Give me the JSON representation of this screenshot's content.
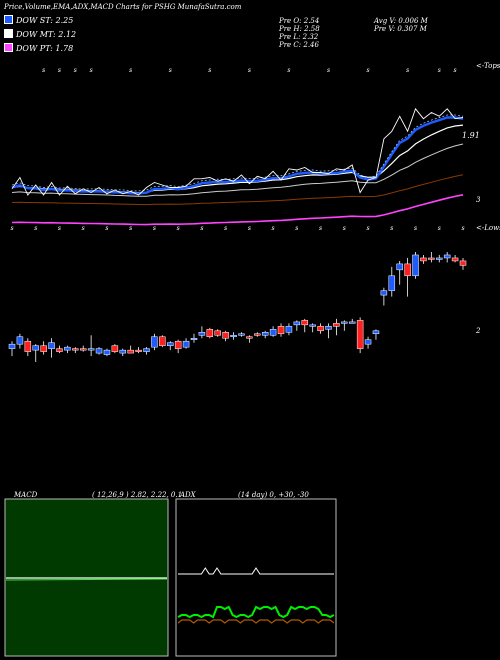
{
  "header": {
    "title": "Price,Volume,EMA,ADX,MACD Charts for PSHG MunafaSutra.com"
  },
  "legend": [
    {
      "label": "DOW ST: 2.25",
      "color": "#1e5cff"
    },
    {
      "label": "DOW MT: 2.12",
      "color": "#ffffff"
    },
    {
      "label": "DOW PT: 1.78",
      "color": "#ff44ff"
    }
  ],
  "prev": {
    "open": "Pre  O: 2.54",
    "high": "Pre  H: 2.58",
    "low": "Pre  L: 2.32",
    "close": "Pre  C: 2.46"
  },
  "volume": {
    "avg": "Avg V: 0.006  M",
    "prev": "Pre  V: 0.307 M"
  },
  "ema_panel": {
    "right_tag": "<-Tops",
    "last_price_label": "1.91",
    "axis_label": "3"
  },
  "candle_panel": {
    "right_tag": "<-Lows",
    "axis_label": "2"
  },
  "macd": {
    "label": "MACD",
    "params": "( 12,26,9 ) 2.82,  2.22,  0.1"
  },
  "adx": {
    "label": "ADX",
    "params": "(14  day) 0,  +30,  -30"
  },
  "colors": {
    "up": "#1e5cff",
    "down": "#ff2020",
    "macd_bg": "#003a00",
    "adx_plus": "#00ee00",
    "adx_minus": "#b05a00"
  },
  "chart_data": {
    "type": "line",
    "x": [
      1,
      2,
      3,
      4,
      5,
      6,
      7,
      8,
      9,
      10,
      11,
      12,
      13,
      14,
      15,
      16,
      17,
      18,
      19,
      20,
      21,
      22,
      23,
      24,
      25,
      26,
      27,
      28,
      29,
      30,
      31,
      32,
      33,
      34,
      35,
      36,
      37,
      38,
      39,
      40,
      41,
      42,
      43,
      44,
      45,
      46,
      47,
      48,
      49,
      50,
      51,
      52,
      53,
      54,
      55,
      56,
      57,
      58
    ],
    "candles": [
      {
        "o": 1.97,
        "h": 2.02,
        "l": 1.92,
        "c": 2.0
      },
      {
        "o": 2.0,
        "h": 2.07,
        "l": 1.97,
        "c": 2.05
      },
      {
        "o": 2.02,
        "h": 2.04,
        "l": 1.92,
        "c": 1.95
      },
      {
        "o": 1.96,
        "h": 2.0,
        "l": 1.88,
        "c": 1.99
      },
      {
        "o": 1.99,
        "h": 2.02,
        "l": 1.93,
        "c": 1.95
      },
      {
        "o": 1.97,
        "h": 2.04,
        "l": 1.91,
        "c": 2.01
      },
      {
        "o": 1.97,
        "h": 1.99,
        "l": 1.94,
        "c": 1.95
      },
      {
        "o": 1.96,
        "h": 1.99,
        "l": 1.94,
        "c": 1.98
      },
      {
        "o": 1.97,
        "h": 1.98,
        "l": 1.94,
        "c": 1.96
      },
      {
        "o": 1.97,
        "h": 1.99,
        "l": 1.95,
        "c": 1.96
      },
      {
        "o": 1.96,
        "h": 2.06,
        "l": 1.92,
        "c": 1.97
      },
      {
        "o": 1.94,
        "h": 1.98,
        "l": 1.93,
        "c": 1.97
      },
      {
        "o": 1.93,
        "h": 1.97,
        "l": 1.92,
        "c": 1.96
      },
      {
        "o": 1.99,
        "h": 2.0,
        "l": 1.94,
        "c": 1.95
      },
      {
        "o": 1.94,
        "h": 1.97,
        "l": 1.92,
        "c": 1.96
      },
      {
        "o": 1.96,
        "h": 1.99,
        "l": 1.94,
        "c": 1.94
      },
      {
        "o": 1.96,
        "h": 1.98,
        "l": 1.94,
        "c": 1.95
      },
      {
        "o": 1.95,
        "h": 1.98,
        "l": 1.93,
        "c": 1.97
      },
      {
        "o": 1.98,
        "h": 2.07,
        "l": 1.96,
        "c": 2.05
      },
      {
        "o": 2.05,
        "h": 2.06,
        "l": 1.98,
        "c": 1.99
      },
      {
        "o": 1.99,
        "h": 2.02,
        "l": 1.96,
        "c": 2.01
      },
      {
        "o": 2.02,
        "h": 2.03,
        "l": 1.94,
        "c": 1.97
      },
      {
        "o": 1.98,
        "h": 2.04,
        "l": 1.97,
        "c": 2.02
      },
      {
        "o": 2.03,
        "h": 2.07,
        "l": 2.01,
        "c": 2.04
      },
      {
        "o": 2.06,
        "h": 2.12,
        "l": 2.04,
        "c": 2.08
      },
      {
        "o": 2.1,
        "h": 2.11,
        "l": 2.04,
        "c": 2.05
      },
      {
        "o": 2.09,
        "h": 2.1,
        "l": 2.05,
        "c": 2.06
      },
      {
        "o": 2.08,
        "h": 2.09,
        "l": 2.02,
        "c": 2.04
      },
      {
        "o": 2.06,
        "h": 2.08,
        "l": 2.03,
        "c": 2.06
      },
      {
        "o": 2.06,
        "h": 2.08,
        "l": 2.05,
        "c": 2.07
      },
      {
        "o": 2.05,
        "h": 2.06,
        "l": 2.01,
        "c": 2.04
      },
      {
        "o": 2.07,
        "h": 2.08,
        "l": 2.05,
        "c": 2.06
      },
      {
        "o": 2.06,
        "h": 2.09,
        "l": 2.04,
        "c": 2.08
      },
      {
        "o": 2.06,
        "h": 2.12,
        "l": 2.05,
        "c": 2.1
      },
      {
        "o": 2.12,
        "h": 2.14,
        "l": 2.05,
        "c": 2.07
      },
      {
        "o": 2.08,
        "h": 2.14,
        "l": 2.06,
        "c": 2.12
      },
      {
        "o": 2.13,
        "h": 2.16,
        "l": 2.09,
        "c": 2.15
      },
      {
        "o": 2.16,
        "h": 2.17,
        "l": 2.08,
        "c": 2.13
      },
      {
        "o": 2.12,
        "h": 2.14,
        "l": 2.08,
        "c": 2.13
      },
      {
        "o": 2.12,
        "h": 2.14,
        "l": 2.07,
        "c": 2.09
      },
      {
        "o": 2.1,
        "h": 2.14,
        "l": 2.04,
        "c": 2.12
      },
      {
        "o": 2.14,
        "h": 2.17,
        "l": 2.06,
        "c": 2.12
      },
      {
        "o": 2.14,
        "h": 2.16,
        "l": 2.09,
        "c": 2.15
      },
      {
        "o": 2.15,
        "h": 2.17,
        "l": 2.14,
        "c": 2.15
      },
      {
        "o": 2.16,
        "h": 2.18,
        "l": 1.94,
        "c": 1.97
      },
      {
        "o": 2.0,
        "h": 2.05,
        "l": 1.97,
        "c": 2.03
      },
      {
        "o": 2.07,
        "h": 2.1,
        "l": 2.03,
        "c": 2.09
      },
      {
        "o": 2.33,
        "h": 2.38,
        "l": 2.26,
        "c": 2.36
      },
      {
        "o": 2.36,
        "h": 2.52,
        "l": 2.32,
        "c": 2.46
      },
      {
        "o": 2.5,
        "h": 2.56,
        "l": 2.4,
        "c": 2.54
      },
      {
        "o": 2.54,
        "h": 2.58,
        "l": 2.32,
        "c": 2.46
      },
      {
        "o": 2.46,
        "h": 2.62,
        "l": 2.44,
        "c": 2.6
      },
      {
        "o": 2.58,
        "h": 2.6,
        "l": 2.54,
        "c": 2.56
      },
      {
        "o": 2.58,
        "h": 2.62,
        "l": 2.55,
        "c": 2.57
      },
      {
        "o": 2.57,
        "h": 2.6,
        "l": 2.55,
        "c": 2.58
      },
      {
        "o": 2.58,
        "h": 2.62,
        "l": 2.55,
        "c": 2.6
      },
      {
        "o": 2.58,
        "h": 2.6,
        "l": 2.55,
        "c": 2.56
      },
      {
        "o": 2.56,
        "h": 2.58,
        "l": 2.5,
        "c": 2.53
      }
    ],
    "ylim": [
      1.86,
      2.62
    ]
  }
}
